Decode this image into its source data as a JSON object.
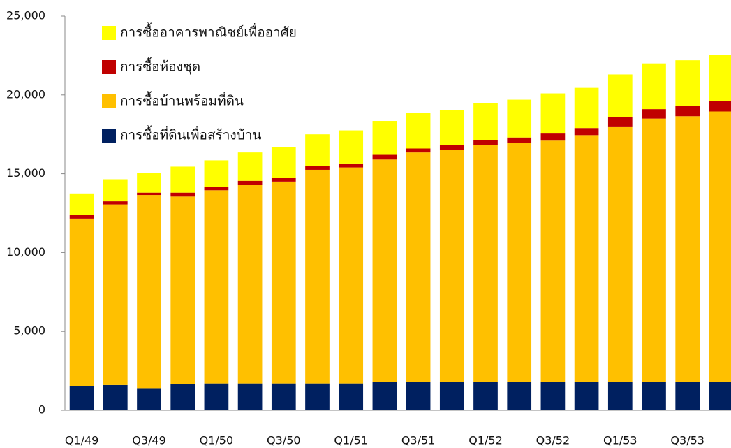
{
  "chart_data": {
    "type": "stacked-bar",
    "categories": [
      "Q1/49",
      null,
      "Q3/49",
      null,
      "Q1/50",
      null,
      "Q3/50",
      null,
      "Q1/51",
      null,
      "Q3/51",
      null,
      "Q1/52",
      null,
      "Q3/52",
      null,
      "Q1/53",
      null,
      "Q3/53",
      null
    ],
    "series": [
      {
        "name": "การซื้อที่ดินเพื่อสร้างบ้าน",
        "color": "#002060",
        "values": [
          1550,
          1600,
          1400,
          1650,
          1700,
          1700,
          1700,
          1700,
          1700,
          1800,
          1800,
          1800,
          1800,
          1800,
          1800,
          1800,
          1800,
          1800,
          1800,
          1800
        ]
      },
      {
        "name": "การซื้อบ้านพร้อมที่ดิน",
        "color": "#ffc000",
        "values": [
          10600,
          11450,
          12250,
          11900,
          12250,
          12600,
          12800,
          13550,
          13700,
          14100,
          14550,
          14700,
          15000,
          15150,
          15300,
          15650,
          16200,
          16700,
          16850,
          17150
        ]
      },
      {
        "name": "การซื้อห้องชุด",
        "color": "#c00000",
        "values": [
          250,
          200,
          150,
          250,
          200,
          250,
          250,
          250,
          250,
          300,
          250,
          300,
          350,
          350,
          450,
          450,
          600,
          600,
          650,
          650
        ]
      },
      {
        "name": "การซื้ออาคารพาณิชย์เพื่ออาศัย",
        "color": "#ffff00",
        "values": [
          1350,
          1400,
          1250,
          1650,
          1700,
          1800,
          1950,
          2000,
          2100,
          2150,
          2250,
          2250,
          2350,
          2400,
          2550,
          2550,
          2700,
          2900,
          2900,
          2950
        ]
      }
    ],
    "ylim": [
      0,
      25000
    ],
    "yticks": [
      0,
      {
        "value": 5000,
        "label": "5,000"
      },
      {
        "value": 10000,
        "label": "10,000"
      },
      {
        "value": 15000,
        "label": "15,000"
      },
      {
        "value": 20000,
        "label": "20,000"
      },
      {
        "value": 25000,
        "label": "25,000"
      }
    ],
    "grid": false,
    "legend": "top-left"
  }
}
